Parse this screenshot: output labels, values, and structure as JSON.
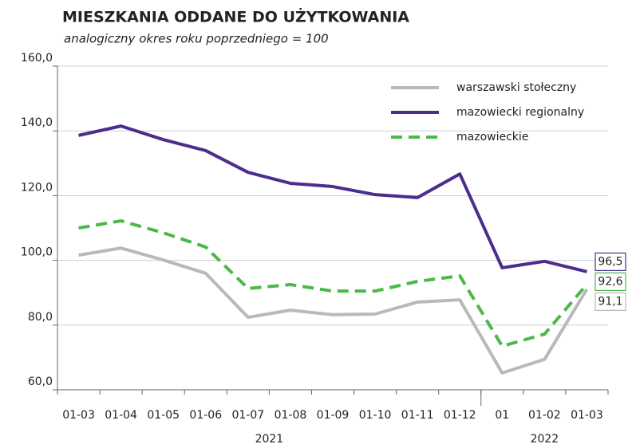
{
  "chart_data": {
    "type": "line",
    "title": "MIESZKANIA ODDANE DO UŻYTKOWANIA",
    "subtitle": "analogiczny okres roku poprzedniego = 100",
    "categories": [
      "01-03",
      "01-04",
      "01-05",
      "01-06",
      "01-07",
      "01-08",
      "01-09",
      "01-10",
      "01-11",
      "01-12",
      "01",
      "01-02",
      "01-03"
    ],
    "groups": [
      {
        "label": "2021",
        "count": 10
      },
      {
        "label": "2022",
        "count": 3
      }
    ],
    "series": [
      {
        "name": "warszawski stołeczny",
        "color": "#b9b9b9",
        "dash": false,
        "values": [
          101.6,
          103.8,
          100.1,
          96.0,
          82.4,
          84.6,
          83.2,
          83.4,
          87.1,
          87.8,
          65.2,
          69.4,
          91.1
        ],
        "value_labels": [
          null,
          null,
          null,
          null,
          null,
          null,
          null,
          null,
          null,
          null,
          null,
          null,
          "91,1"
        ]
      },
      {
        "name": "mazowiecki regionalny",
        "color": "#4b2d8f",
        "dash": false,
        "values": [
          138.6,
          141.5,
          137.3,
          133.9,
          127.2,
          123.8,
          122.8,
          120.3,
          119.4,
          126.7,
          97.7,
          99.7,
          96.5
        ],
        "value_labels": [
          null,
          null,
          null,
          null,
          null,
          null,
          null,
          null,
          null,
          null,
          null,
          null,
          "96,5"
        ]
      },
      {
        "name": "mazowieckie",
        "color": "#4cb848",
        "dash": true,
        "values": [
          110.0,
          112.2,
          108.5,
          104.1,
          91.3,
          92.5,
          90.5,
          90.5,
          93.5,
          95.2,
          73.5,
          77.2,
          92.6
        ],
        "value_labels": [
          null,
          null,
          null,
          null,
          null,
          null,
          null,
          null,
          null,
          null,
          null,
          null,
          "92,6"
        ]
      }
    ],
    "ylim": [
      60,
      160
    ],
    "yticks": [
      {
        "value": 60,
        "label": "60,0"
      },
      {
        "value": 80,
        "label": "80,0"
      },
      {
        "value": 100,
        "label": "100,0"
      },
      {
        "value": 120,
        "label": "120,0"
      },
      {
        "value": 140,
        "label": "140,0"
      },
      {
        "value": 160,
        "label": "160,0"
      }
    ],
    "grid": true,
    "legend": "top-right"
  }
}
